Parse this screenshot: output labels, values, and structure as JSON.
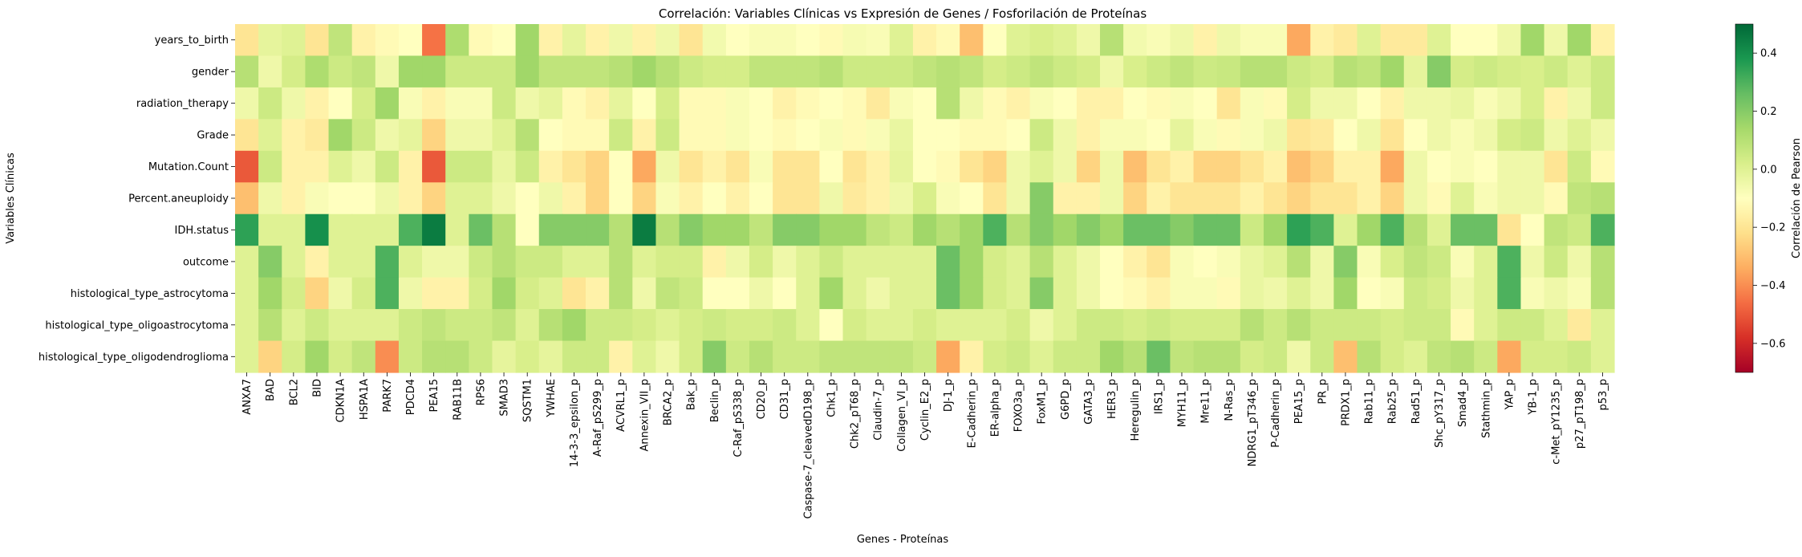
{
  "chart_data": {
    "type": "heatmap",
    "title": "Correlación: Variables Clínicas vs Expresión de Genes / Fosforilación de Proteínas",
    "xlabel": "Genes - Proteínas",
    "ylabel": "Variables Clínicas",
    "colorbar_label": "Correlación de Pearson",
    "colormap": "RdYlGn",
    "vmin": -0.7,
    "vmax": 0.5,
    "colorbar_ticks": [
      0.4,
      0.2,
      0.0,
      -0.2,
      -0.4,
      -0.6
    ],
    "colorbar_tick_labels": [
      "0.4",
      "0.2",
      "0.0",
      "−0.2",
      "−0.4",
      "−0.6"
    ],
    "rows": [
      "years_to_birth",
      "gender",
      "radiation_therapy",
      "Grade",
      "Mutation.Count",
      "Percent.aneuploidy",
      "IDH.status",
      "outcome",
      "histological_type_astrocytoma",
      "histological_type_oligoastrocytoma",
      "histological_type_oligodendroglioma"
    ],
    "columns": [
      "ANXA7",
      "BAD",
      "BCL2",
      "BID",
      "CDKN1A",
      "HSPA1A",
      "PARK7",
      "PDCD4",
      "PEA15",
      "RAB11B",
      "RPS6",
      "SMAD3",
      "SQSTM1",
      "YWHAE",
      "14-3-3_epsilon_p",
      "A-Raf_pS299_p",
      "ACVRL1_p",
      "Annexin_VII_p",
      "BRCA2_p",
      "Bak_p",
      "Beclin_p",
      "C-Raf_pS338_p",
      "CD20_p",
      "CD31_p",
      "Caspase-7_cleavedD198_p",
      "Chk1_p",
      "Chk2_pT68_p",
      "Claudin-7_p",
      "Collagen_VI_p",
      "Cyclin_E2_p",
      "DJ-1_p",
      "E-Cadherin_p",
      "ER-alpha_p",
      "FOXO3a_p",
      "FoxM1_p",
      "G6PD_p",
      "GATA3_p",
      "HER3_p",
      "Heregulin_p",
      "IRS1_p",
      "MYH11_p",
      "Mre11_p",
      "N-Ras_p",
      "NDRG1_pT346_p",
      "P-Cadherin_p",
      "PEA15_p",
      "PR_p",
      "PRDX1_p",
      "Rab11_p",
      "Rab25_p",
      "Rad51_p",
      "Shc_pY317_p",
      "Smad4_p",
      "Stathmin_p",
      "YAP_p",
      "YB-1_p",
      "c-Met_pY1235_p",
      "p27_pT198_p",
      "p53_p"
    ],
    "tick_labels_x": [
      "ANXA7",
      "BAD",
      "BCL2",
      "BID",
      "CDKN1A",
      "HSPA1A",
      "PARK7",
      "PDCD4",
      "PEA15",
      "RAB11B",
      "RPS6",
      "SMAD3",
      "SQSTM1",
      "YWHAE",
      "14-3-3_epsilon_p",
      "A-Raf_pS299_p",
      "ACVRL1_p",
      "Annexin_VII_p",
      "BRCA2_p",
      "Bak_p",
      "Beclin_p",
      "C-Raf_pS338_p",
      "CD20_p",
      "CD31_p",
      "Caspase-7_cleavedD198_p",
      "Chk1_p",
      "Chk2_pT68_p",
      "Claudin-7_p",
      "Collagen_VI_p",
      "Cyclin_E2_p",
      "DJ-1_p",
      "E-Cadherin_p",
      "ER-alpha_p",
      "FOXO3a_p",
      "FoxM1_p",
      "G6PD_p",
      "GATA3_p",
      "HER3_p",
      "Heregulin_p",
      "IRS1_p",
      "MYH11_p",
      "Mre11_p",
      "N-Ras_p",
      "NDRG1_pT346_p",
      "P-Cadherin_p",
      "PEA15_p",
      "PR_p",
      "PRDX1_p",
      "Rab11_p",
      "Rab25_p",
      "Rad51_p",
      "Shc_pY317_p",
      "Smad4_p",
      "Stathmin_p",
      "YAP_p",
      "YB-1_p",
      "c-Met_pY1235_p",
      "p27_pT198_p",
      "p53_p"
    ],
    "values": [
      [
        -0.2,
        -0.02,
        0.0,
        -0.2,
        0.08,
        -0.15,
        -0.12,
        -0.1,
        -0.45,
        0.12,
        -0.12,
        -0.1,
        0.15,
        -0.15,
        -0.02,
        -0.15,
        -0.05,
        -0.15,
        -0.05,
        -0.2,
        -0.06,
        -0.1,
        -0.08,
        -0.08,
        -0.1,
        -0.12,
        -0.07,
        -0.08,
        0.0,
        -0.15,
        -0.12,
        -0.3,
        -0.1,
        0.0,
        0.02,
        0.0,
        -0.05,
        0.1,
        -0.06,
        -0.08,
        -0.05,
        -0.15,
        -0.05,
        -0.08,
        -0.08,
        -0.35,
        -0.15,
        -0.18,
        0.0,
        -0.18,
        -0.18,
        0.0,
        -0.1,
        -0.1,
        -0.05,
        0.15,
        -0.05,
        0.15,
        -0.15
      ],
      [
        0.1,
        -0.05,
        0.03,
        0.12,
        0.05,
        0.08,
        -0.05,
        0.15,
        0.15,
        0.05,
        0.05,
        0.05,
        0.15,
        0.08,
        0.08,
        0.08,
        0.1,
        0.15,
        0.1,
        0.05,
        0.03,
        0.03,
        0.08,
        0.08,
        0.08,
        0.1,
        0.05,
        0.05,
        0.05,
        0.08,
        0.1,
        0.08,
        0.03,
        0.05,
        0.08,
        0.05,
        0.03,
        -0.05,
        0.02,
        0.05,
        0.08,
        0.05,
        0.06,
        0.1,
        0.1,
        0.05,
        0.03,
        0.1,
        0.08,
        0.15,
        -0.02,
        0.2,
        0.03,
        0.05,
        0.03,
        0.02,
        0.05,
        0.0,
        0.05
      ],
      [
        -0.05,
        0.05,
        -0.05,
        -0.15,
        -0.1,
        0.03,
        0.15,
        -0.08,
        -0.15,
        -0.08,
        -0.08,
        0.05,
        -0.05,
        -0.02,
        -0.12,
        -0.15,
        -0.02,
        -0.1,
        0.03,
        -0.12,
        -0.12,
        -0.08,
        -0.1,
        -0.15,
        -0.12,
        -0.1,
        -0.12,
        -0.18,
        -0.08,
        -0.1,
        0.1,
        -0.05,
        -0.12,
        -0.15,
        -0.08,
        -0.1,
        -0.15,
        -0.15,
        -0.1,
        -0.12,
        -0.08,
        -0.1,
        -0.2,
        -0.08,
        -0.12,
        0.03,
        -0.05,
        -0.05,
        -0.1,
        -0.15,
        -0.05,
        -0.05,
        -0.03,
        -0.08,
        -0.05,
        0.02,
        -0.15,
        -0.05,
        0.05
      ],
      [
        -0.2,
        0.0,
        -0.15,
        -0.18,
        0.15,
        0.05,
        -0.05,
        -0.02,
        -0.25,
        -0.05,
        -0.05,
        0.0,
        0.1,
        -0.1,
        -0.12,
        -0.12,
        0.05,
        -0.15,
        0.05,
        -0.12,
        -0.12,
        -0.08,
        -0.1,
        -0.12,
        -0.1,
        -0.08,
        -0.12,
        -0.08,
        -0.03,
        -0.1,
        -0.1,
        -0.12,
        -0.12,
        -0.1,
        0.05,
        -0.05,
        -0.15,
        -0.08,
        -0.08,
        -0.1,
        -0.02,
        -0.08,
        -0.12,
        -0.08,
        -0.05,
        -0.2,
        -0.18,
        -0.1,
        -0.05,
        -0.2,
        -0.1,
        -0.05,
        -0.08,
        -0.05,
        0.03,
        0.05,
        -0.05,
        0.0,
        -0.05
      ],
      [
        -0.5,
        0.05,
        -0.15,
        -0.15,
        0.0,
        -0.05,
        0.05,
        -0.15,
        -0.5,
        0.05,
        0.05,
        -0.03,
        0.05,
        -0.15,
        -0.2,
        -0.25,
        -0.1,
        -0.35,
        -0.05,
        -0.2,
        -0.15,
        -0.2,
        -0.08,
        -0.2,
        -0.2,
        -0.1,
        -0.2,
        -0.15,
        -0.02,
        -0.1,
        -0.12,
        -0.2,
        -0.25,
        -0.05,
        0.0,
        -0.05,
        -0.25,
        -0.05,
        -0.3,
        -0.2,
        -0.15,
        -0.25,
        -0.25,
        -0.2,
        -0.15,
        -0.3,
        -0.25,
        -0.15,
        -0.15,
        -0.35,
        -0.05,
        -0.1,
        -0.08,
        -0.1,
        -0.05,
        -0.05,
        -0.2,
        0.05,
        -0.12
      ],
      [
        -0.3,
        -0.05,
        -0.15,
        -0.08,
        -0.1,
        -0.1,
        -0.05,
        -0.15,
        -0.25,
        0.0,
        0.0,
        -0.05,
        -0.1,
        -0.05,
        -0.15,
        -0.25,
        -0.1,
        -0.25,
        -0.08,
        -0.15,
        -0.1,
        -0.15,
        -0.1,
        -0.2,
        -0.2,
        -0.05,
        -0.18,
        -0.15,
        -0.05,
        0.02,
        -0.08,
        -0.1,
        -0.2,
        -0.05,
        0.2,
        -0.15,
        -0.15,
        -0.05,
        -0.25,
        -0.15,
        -0.2,
        -0.2,
        -0.2,
        -0.15,
        -0.2,
        -0.25,
        -0.2,
        -0.2,
        -0.15,
        -0.25,
        -0.05,
        -0.12,
        0.0,
        -0.08,
        -0.05,
        -0.05,
        -0.12,
        0.08,
        0.1
      ],
      [
        0.35,
        0.0,
        0.0,
        0.4,
        0.0,
        0.0,
        0.0,
        0.3,
        0.45,
        0.0,
        0.25,
        0.1,
        -0.1,
        0.2,
        0.2,
        0.2,
        0.1,
        0.45,
        0.1,
        0.2,
        0.15,
        0.15,
        0.08,
        0.2,
        0.2,
        0.15,
        0.15,
        0.08,
        0.05,
        0.15,
        0.1,
        0.15,
        0.3,
        0.1,
        0.2,
        0.15,
        0.2,
        0.15,
        0.25,
        0.25,
        0.2,
        0.25,
        0.25,
        0.05,
        0.15,
        0.35,
        0.3,
        0.0,
        0.15,
        0.3,
        0.1,
        0.0,
        0.25,
        0.25,
        -0.2,
        -0.1,
        0.08,
        0.05,
        0.3
      ],
      [
        0.0,
        0.2,
        0.0,
        -0.15,
        0.0,
        0.0,
        0.3,
        0.0,
        -0.05,
        -0.05,
        0.05,
        0.1,
        0.05,
        0.05,
        0.0,
        0.0,
        0.1,
        0.0,
        0.03,
        0.03,
        -0.15,
        -0.05,
        0.03,
        -0.05,
        0.0,
        0.05,
        0.0,
        0.0,
        0.0,
        0.0,
        0.25,
        0.15,
        0.03,
        0.0,
        0.1,
        0.0,
        -0.05,
        -0.1,
        -0.15,
        -0.2,
        -0.08,
        -0.1,
        -0.08,
        -0.03,
        0.0,
        0.1,
        -0.05,
        0.2,
        -0.08,
        0.02,
        0.08,
        0.05,
        -0.08,
        0.0,
        0.3,
        -0.05,
        0.05,
        -0.05,
        0.1
      ],
      [
        0.0,
        0.15,
        0.03,
        -0.25,
        -0.05,
        0.03,
        0.3,
        -0.05,
        -0.15,
        -0.15,
        0.03,
        0.15,
        0.03,
        0.0,
        -0.2,
        -0.15,
        0.1,
        -0.05,
        0.08,
        0.05,
        -0.1,
        -0.1,
        -0.05,
        -0.1,
        0.0,
        0.15,
        0.0,
        -0.05,
        0.0,
        0.0,
        0.25,
        0.15,
        0.03,
        0.0,
        0.2,
        0.0,
        -0.05,
        -0.1,
        -0.12,
        -0.15,
        -0.08,
        -0.08,
        -0.12,
        -0.03,
        -0.05,
        0.0,
        -0.05,
        0.15,
        -0.1,
        -0.08,
        0.05,
        0.03,
        -0.05,
        0.0,
        0.3,
        -0.08,
        -0.05,
        -0.08,
        0.1
      ],
      [
        0.0,
        0.1,
        0.0,
        0.05,
        0.0,
        0.0,
        0.0,
        0.05,
        0.08,
        0.05,
        0.05,
        0.08,
        0.0,
        0.1,
        0.15,
        0.05,
        0.05,
        0.03,
        0.0,
        0.03,
        0.05,
        0.03,
        0.03,
        0.05,
        0.0,
        -0.1,
        0.03,
        0.0,
        0.0,
        0.03,
        0.0,
        0.0,
        0.0,
        0.03,
        -0.05,
        0.0,
        0.05,
        0.05,
        0.03,
        0.05,
        0.03,
        0.03,
        0.03,
        0.1,
        0.05,
        0.1,
        0.05,
        0.05,
        0.05,
        0.03,
        0.05,
        0.05,
        -0.12,
        0.0,
        0.05,
        0.05,
        0.0,
        -0.18,
        0.0
      ],
      [
        0.0,
        -0.25,
        0.03,
        0.15,
        0.03,
        0.08,
        -0.4,
        0.05,
        0.1,
        0.1,
        0.05,
        -0.02,
        0.02,
        -0.02,
        0.05,
        0.05,
        -0.15,
        0.0,
        -0.05,
        0.03,
        0.2,
        0.05,
        0.1,
        0.05,
        0.05,
        0.08,
        0.08,
        0.08,
        0.08,
        0.05,
        -0.35,
        -0.15,
        0.03,
        0.05,
        0.0,
        0.05,
        0.05,
        0.15,
        0.1,
        0.25,
        0.08,
        0.1,
        0.1,
        0.03,
        0.05,
        -0.05,
        0.05,
        -0.3,
        0.1,
        0.03,
        0.0,
        0.08,
        0.1,
        0.05,
        -0.35,
        0.03,
        0.03,
        0.05,
        0.0
      ]
    ]
  }
}
